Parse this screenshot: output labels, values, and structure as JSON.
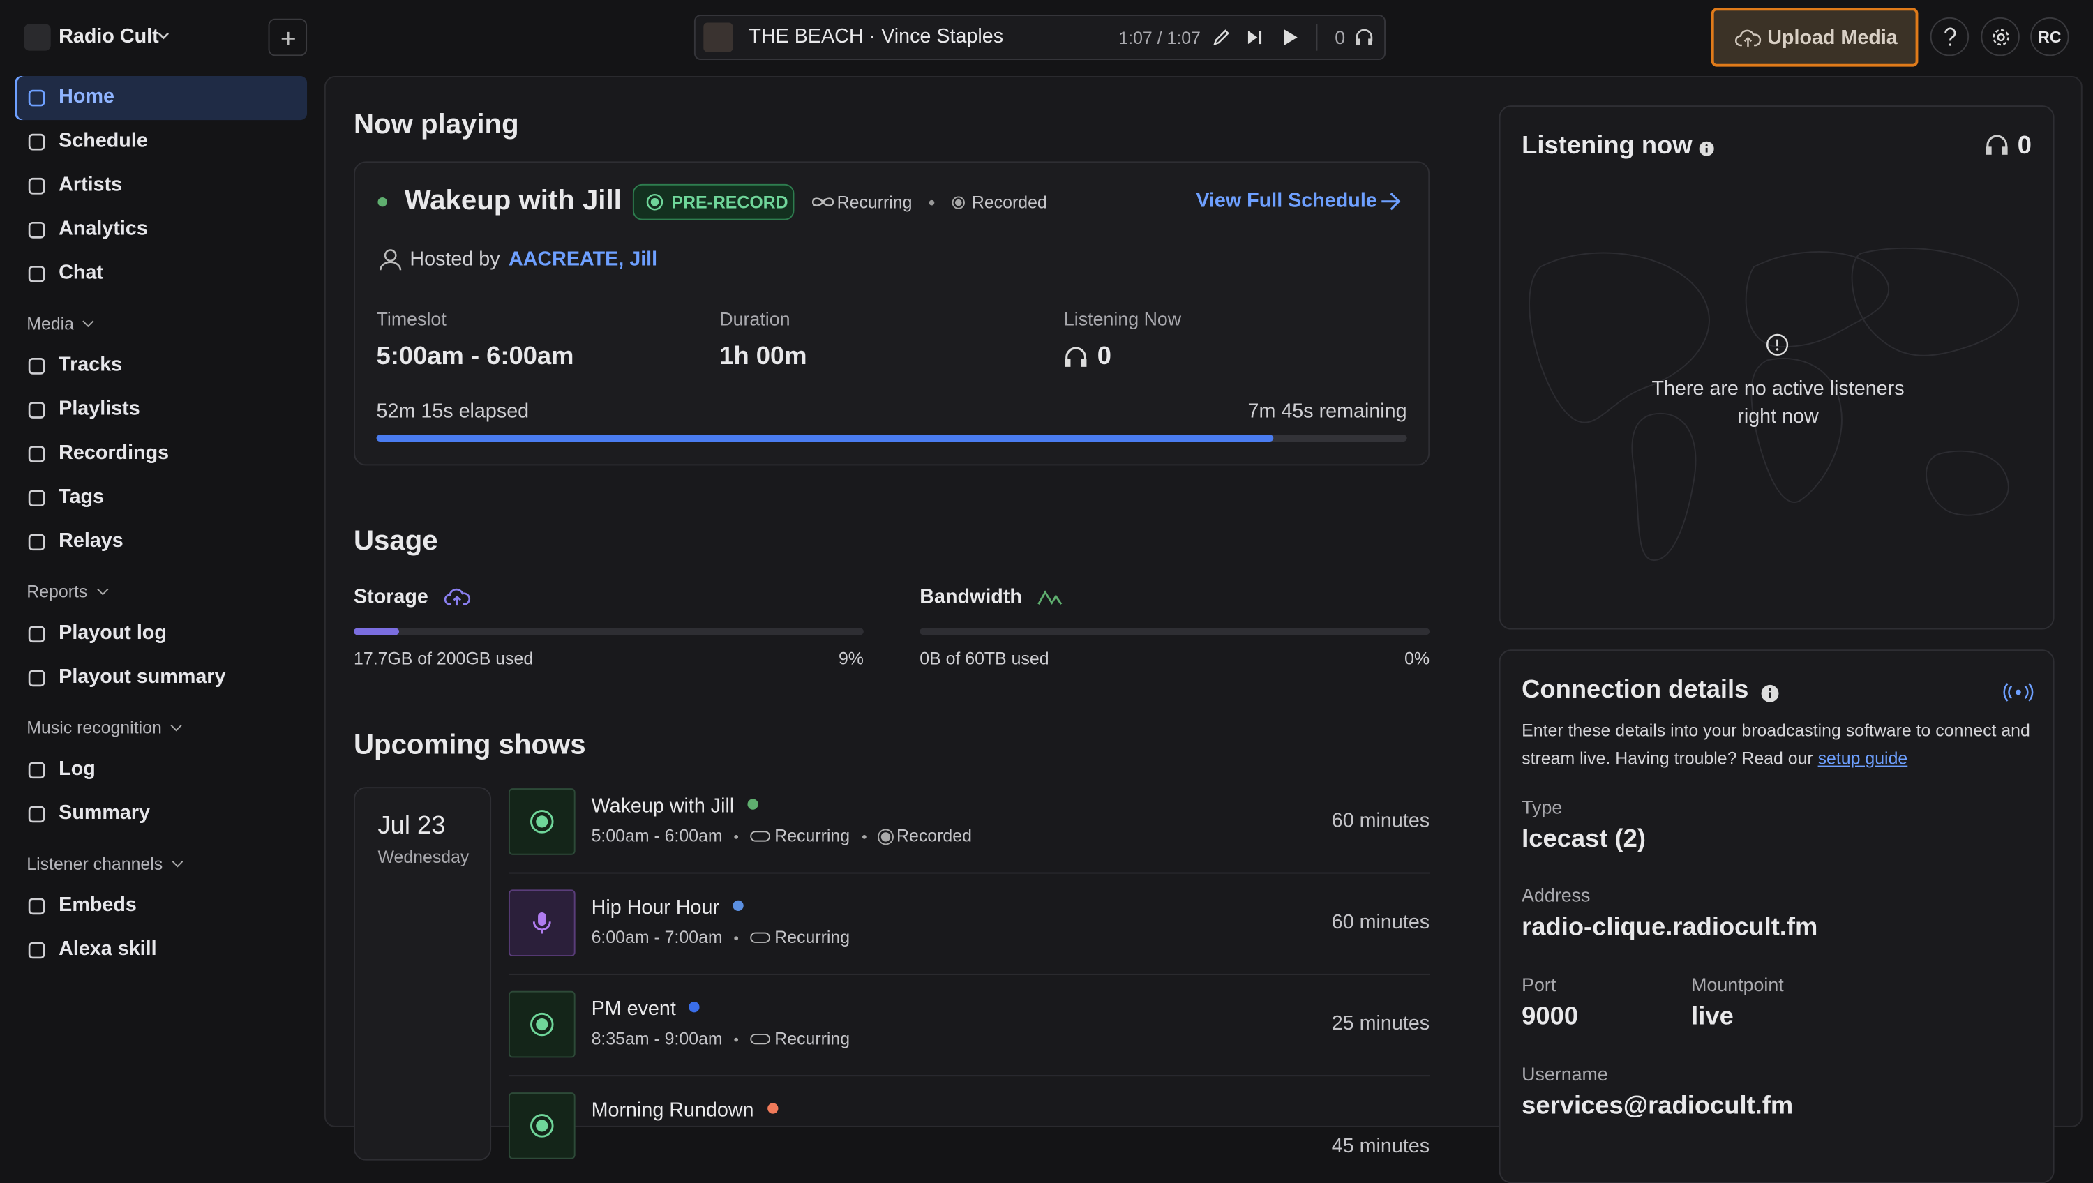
{
  "sidebar": {
    "workspace": "Radio Cult",
    "nav": [
      "Home",
      "Schedule",
      "Artists",
      "Analytics",
      "Chat"
    ],
    "sections": [
      {
        "title": "Media",
        "items": [
          "Tracks",
          "Playlists",
          "Recordings",
          "Tags",
          "Relays"
        ]
      },
      {
        "title": "Reports",
        "items": [
          "Playout log",
          "Playout summary"
        ]
      },
      {
        "title": "Music recognition",
        "items": [
          "Log",
          "Summary"
        ]
      },
      {
        "title": "Listener channels",
        "items": [
          "Embeds",
          "Alexa skill"
        ]
      }
    ]
  },
  "player": {
    "track": "THE BEACH · Vince Staples",
    "time": "1:07 / 1:07",
    "listeners": 0,
    "upload": "Upload Media",
    "avatar": "RC"
  },
  "now_playing": {
    "heading": "Now playing",
    "title": "Wakeup with Jill",
    "badge": "PRE-RECORD",
    "recurring": "Recurring",
    "recorded": "Recorded",
    "link": "View Full Schedule",
    "hosted_by": "Hosted by",
    "host": "AACREATE, Jill",
    "stats": [
      {
        "label": "Timeslot",
        "value": "5:00am - 6:00am"
      },
      {
        "label": "Duration",
        "value": "1h 00m"
      },
      {
        "label": "Listening Now",
        "value": 0
      }
    ],
    "elapsed": "52m 15s elapsed",
    "remaining": "7m 45s remaining",
    "progress": 87
  },
  "usage": {
    "heading": "Usage",
    "meters": [
      {
        "label": "Storage",
        "detail": "17.7GB of 200GB used",
        "percent": {
          "value": 9,
          "label": "9%"
        }
      },
      {
        "label": "Bandwidth",
        "detail": "0B of 60TB used",
        "percent": {
          "value": 0,
          "label": "0%"
        }
      }
    ]
  },
  "upcoming": {
    "heading": "Upcoming shows",
    "date": "Jul 23",
    "weekday": "Wednesday",
    "shows": [
      {
        "name": "Wakeup with Jill",
        "time": "5:00am - 6:00am",
        "recurring": "Recurring",
        "recorded": "Recorded",
        "duration": "60 minutes",
        "color": "#5fae6f"
      },
      {
        "name": "Hip Hour Hour",
        "time": "6:00am - 7:00am",
        "recurring": "Recurring",
        "duration": "60 minutes",
        "color": "#5b8fe0"
      },
      {
        "name": "PM event",
        "time": "8:35am - 9:00am",
        "recurring": "Recurring",
        "duration": "25 minutes",
        "color": "#3a6ee8"
      },
      {
        "name": "Morning Rundown",
        "duration": "45 minutes",
        "color": "#f07a5a"
      }
    ]
  },
  "listening": {
    "title": "Listening now",
    "count": 0,
    "empty": "There are no active listeners right now"
  },
  "connection": {
    "title": "Connection details",
    "description": "Enter these details into your broadcasting software to connect and stream live. Having trouble? Read our ",
    "guide": "setup guide",
    "fields": [
      {
        "label": "Type",
        "value": "Icecast (2)"
      },
      {
        "label": "Address",
        "value": "radio-clique.radiocult.fm"
      },
      {
        "label": "Port",
        "value": 9000
      },
      {
        "label": "Mountpoint",
        "value": "live"
      },
      {
        "label": "Username",
        "value": "services@radiocult.fm"
      }
    ]
  }
}
